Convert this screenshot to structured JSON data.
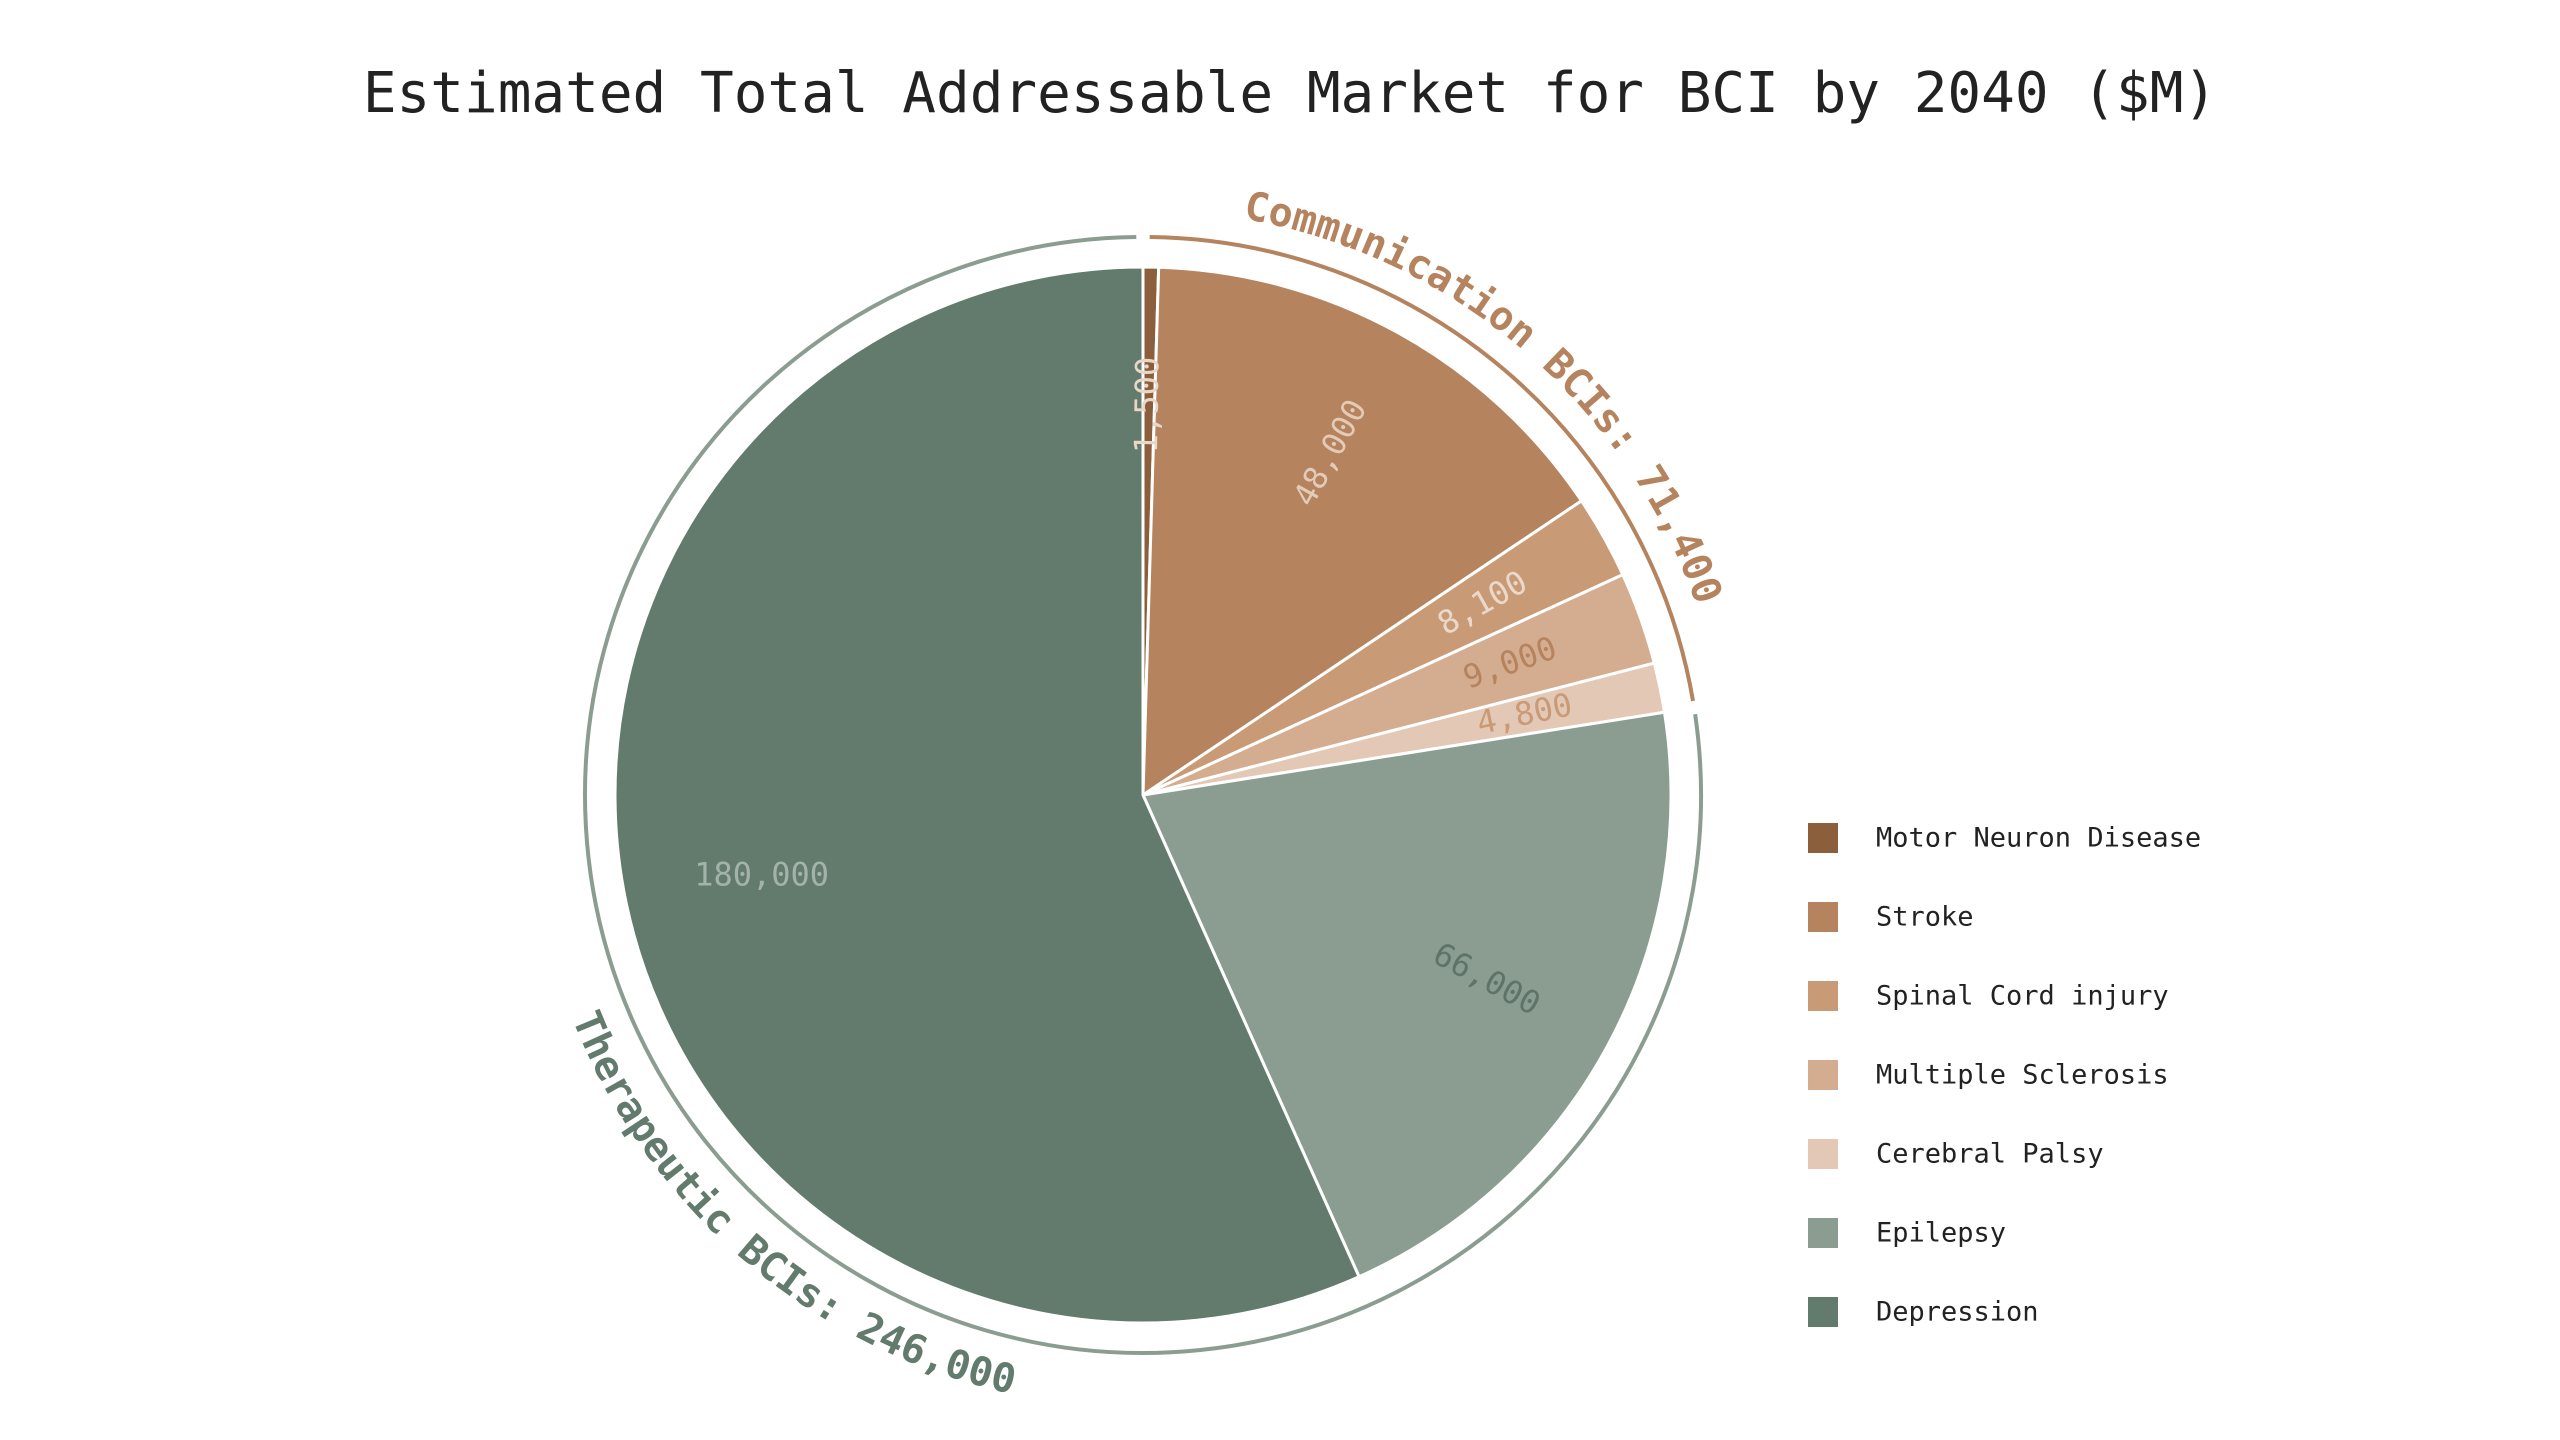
{
  "chart_data": {
    "type": "pie",
    "title": "Estimated Total Addressable Market for BCI by 2040 ($M)",
    "slices": [
      {
        "name": "Motor Neuron Disease",
        "value": 1500,
        "label": "1,500",
        "color": "#8b5e3c",
        "label_color": "#e8d6c8"
      },
      {
        "name": "Stroke",
        "value": 48000,
        "label": "48,000",
        "color": "#b5835d",
        "label_color": "#e3cbb8"
      },
      {
        "name": "Spinal Cord injury",
        "value": 8100,
        "label": "8,100",
        "color": "#c99a76",
        "label_color": "#ead9cb"
      },
      {
        "name": "Multiple Sclerosis",
        "value": 9000,
        "label": "9,000",
        "color": "#d4ad91",
        "label_color": "#b5835d"
      },
      {
        "name": "Cerebral Palsy",
        "value": 4800,
        "label": "4,800",
        "color": "#e3c8b6",
        "label_color": "#c99a76"
      },
      {
        "name": "Epilepsy",
        "value": 66000,
        "label": "66,000",
        "color": "#8b9d91",
        "label_color": "#5f7468"
      },
      {
        "name": "Depression",
        "value": 180000,
        "label": "180,000",
        "color": "#627b6c",
        "label_color": "#a3b3a9"
      }
    ],
    "groups": [
      {
        "name": "Communication BCIs: 71,400",
        "slice_count": 5,
        "color": "#b5835d"
      },
      {
        "name": "Therapeutic BCIs: 246,000",
        "slice_count": 2,
        "color": "#8b9d91",
        "text_color": "#627b6c"
      }
    ],
    "legend_position": "right",
    "start_angle_deg": 90,
    "direction": "clockwise"
  }
}
